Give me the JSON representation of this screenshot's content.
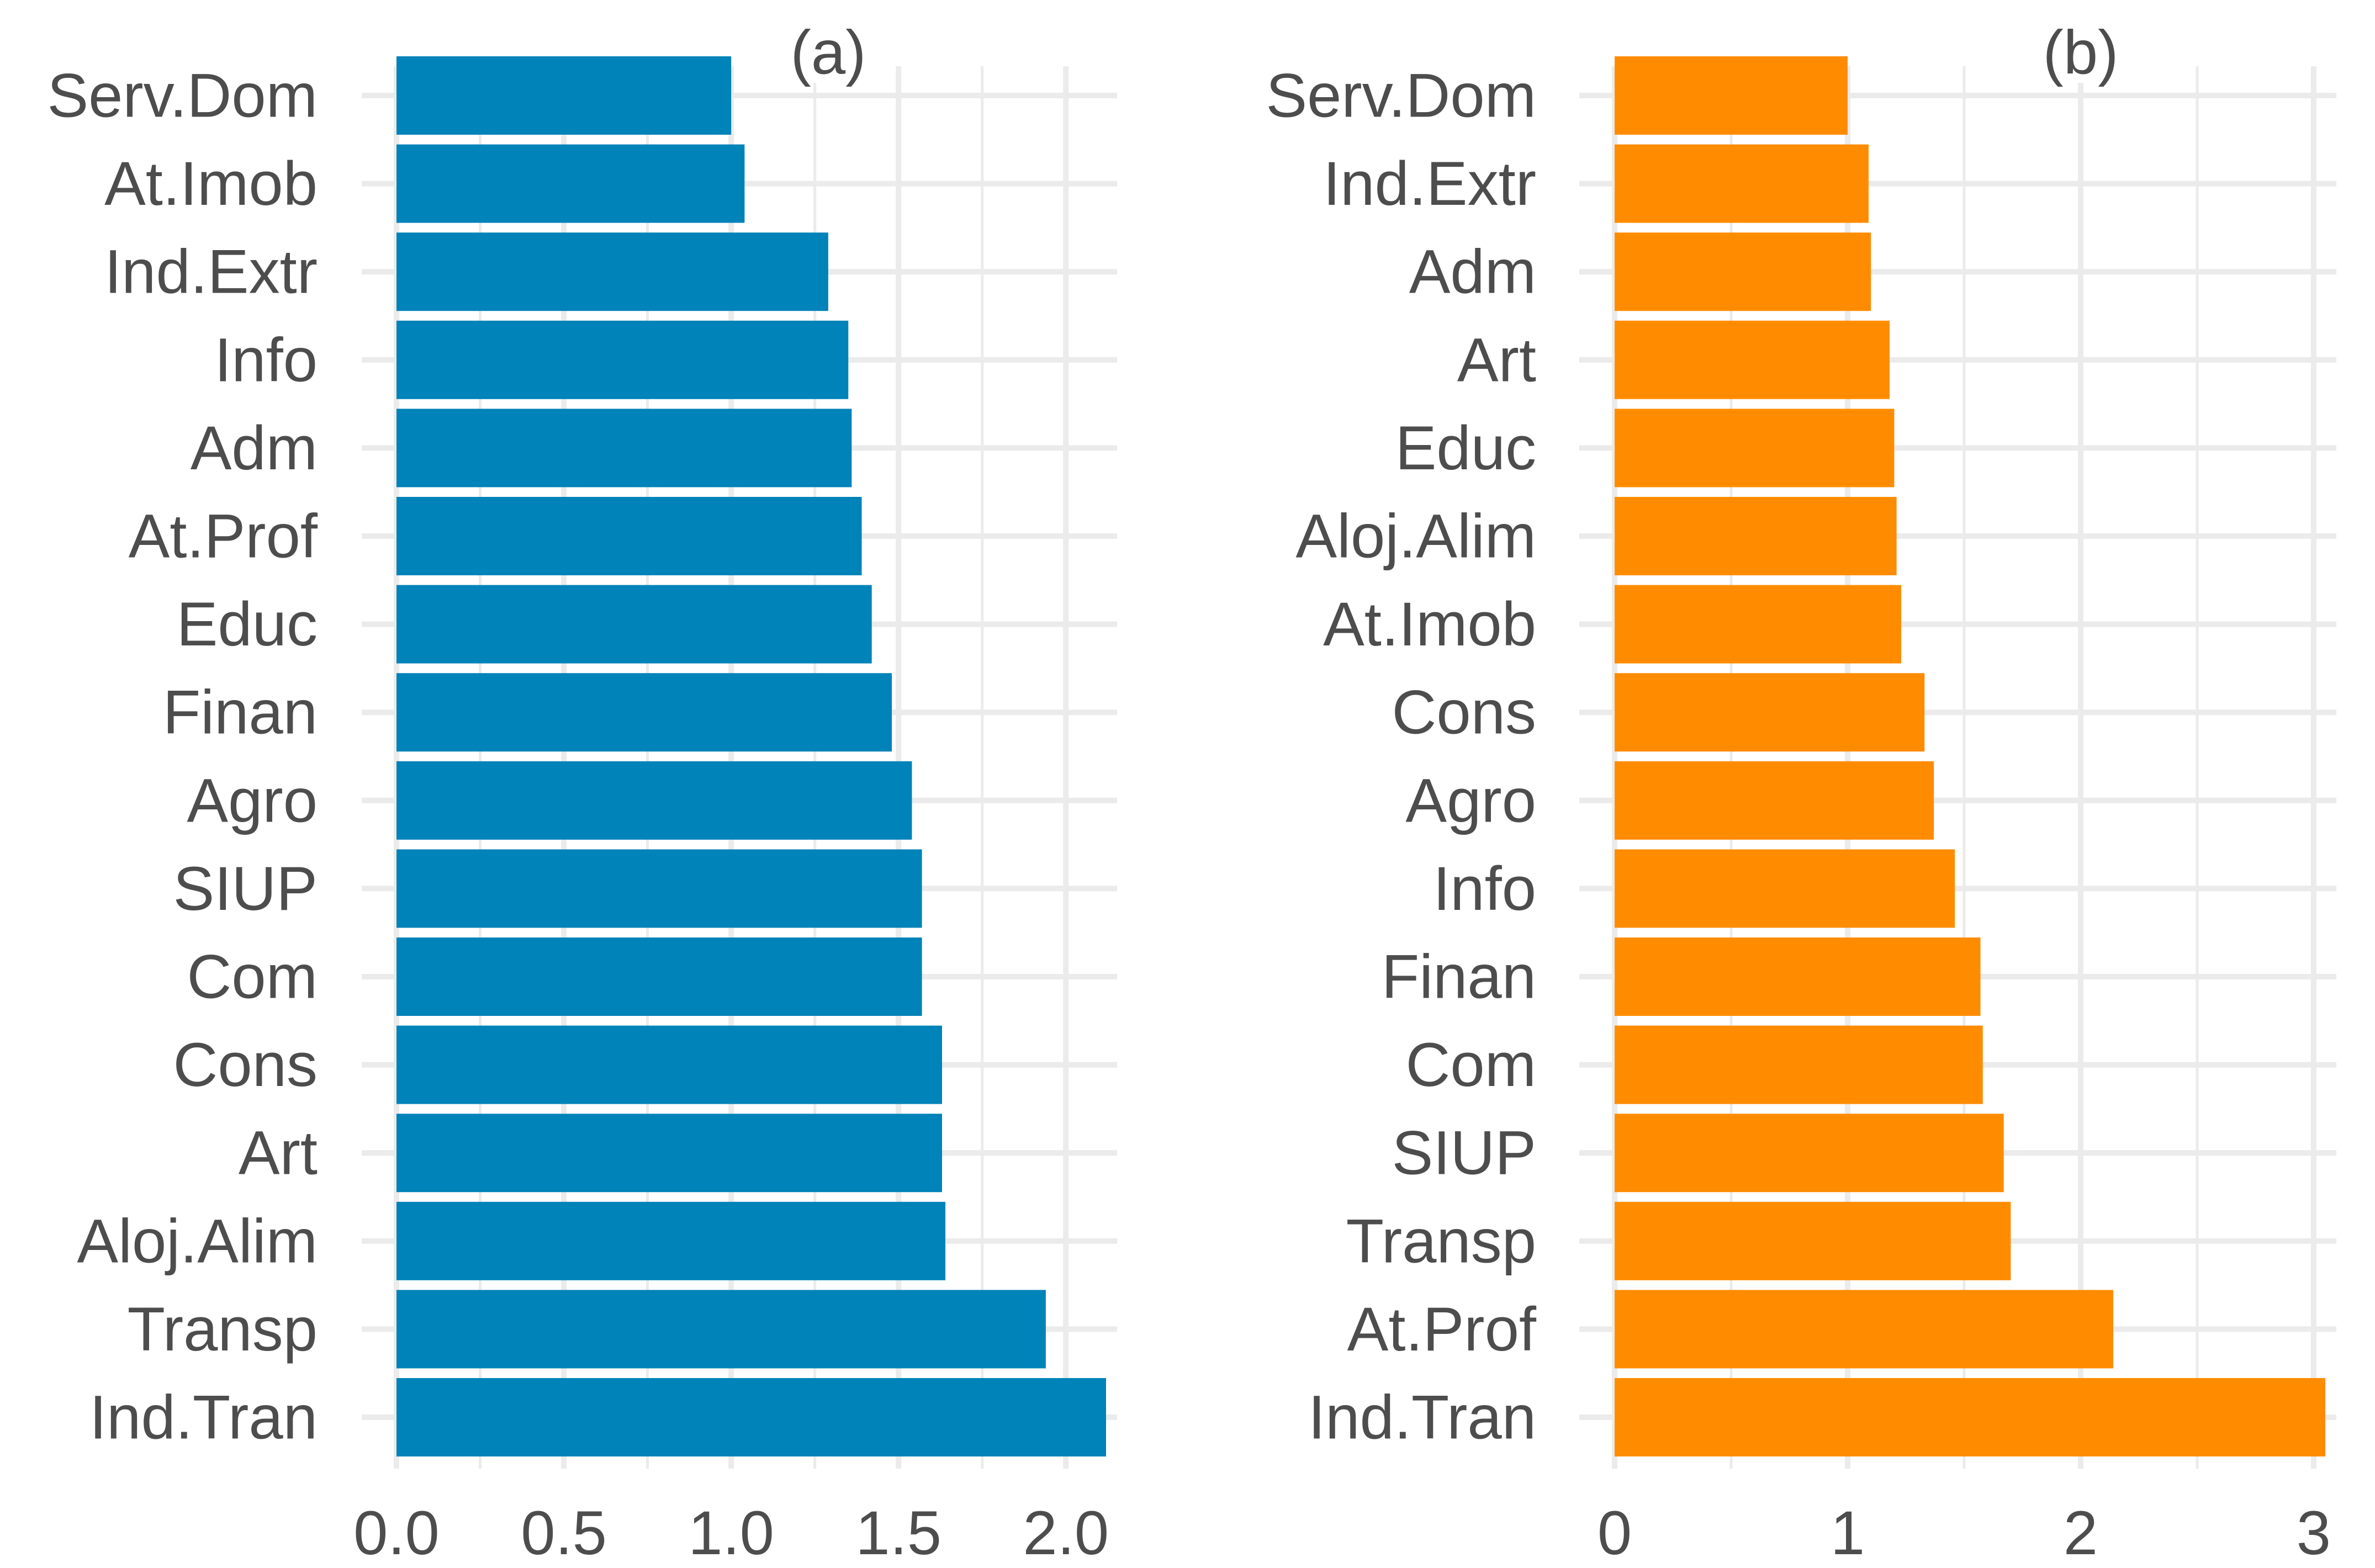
{
  "chart_data": [
    {
      "type": "bar",
      "orientation": "horizontal",
      "title": "(a)",
      "color": "#0083b8",
      "categories": [
        "Serv.Dom",
        "At.Imob",
        "Ind.Extr",
        "Info",
        "Adm",
        "At.Prof",
        "Educ",
        "Finan",
        "Agro",
        "SIUP",
        "Com",
        "Cons",
        "Art",
        "Aloj.Alim",
        "Transp",
        "Ind.Tran"
      ],
      "values": [
        1.0,
        1.04,
        1.29,
        1.35,
        1.36,
        1.39,
        1.42,
        1.48,
        1.54,
        1.57,
        1.57,
        1.63,
        1.63,
        1.64,
        1.94,
        2.12
      ],
      "xlim": [
        0,
        2.12
      ],
      "x_ticks": [
        0,
        0.5,
        1.0,
        1.5,
        2.0
      ],
      "x_tick_labels": [
        "0.0",
        "0.5",
        "1.0",
        "1.5",
        "2.0"
      ],
      "x_minor_ticks": [
        0.25,
        0.75,
        1.25,
        1.75
      ],
      "xlabel": "",
      "ylabel": "",
      "grid": true
    },
    {
      "type": "bar",
      "orientation": "horizontal",
      "title": "(b)",
      "color": "#ff8c00",
      "categories": [
        "Serv.Dom",
        "Ind.Extr",
        "Adm",
        "Art",
        "Educ",
        "Aloj.Alim",
        "At.Imob",
        "Cons",
        "Agro",
        "Info",
        "Finan",
        "Com",
        "SIUP",
        "Transp",
        "At.Prof",
        "Ind.Tran"
      ],
      "values": [
        1.0,
        1.09,
        1.1,
        1.18,
        1.2,
        1.21,
        1.23,
        1.33,
        1.37,
        1.46,
        1.57,
        1.58,
        1.67,
        1.7,
        2.14,
        3.05
      ],
      "xlim": [
        0,
        3.05
      ],
      "x_ticks": [
        0,
        1,
        2,
        3
      ],
      "x_tick_labels": [
        "0",
        "1",
        "2",
        "3"
      ],
      "x_minor_ticks": [
        0.5,
        1.5,
        2.5
      ],
      "xlabel": "",
      "ylabel": "",
      "grid": true
    }
  ]
}
